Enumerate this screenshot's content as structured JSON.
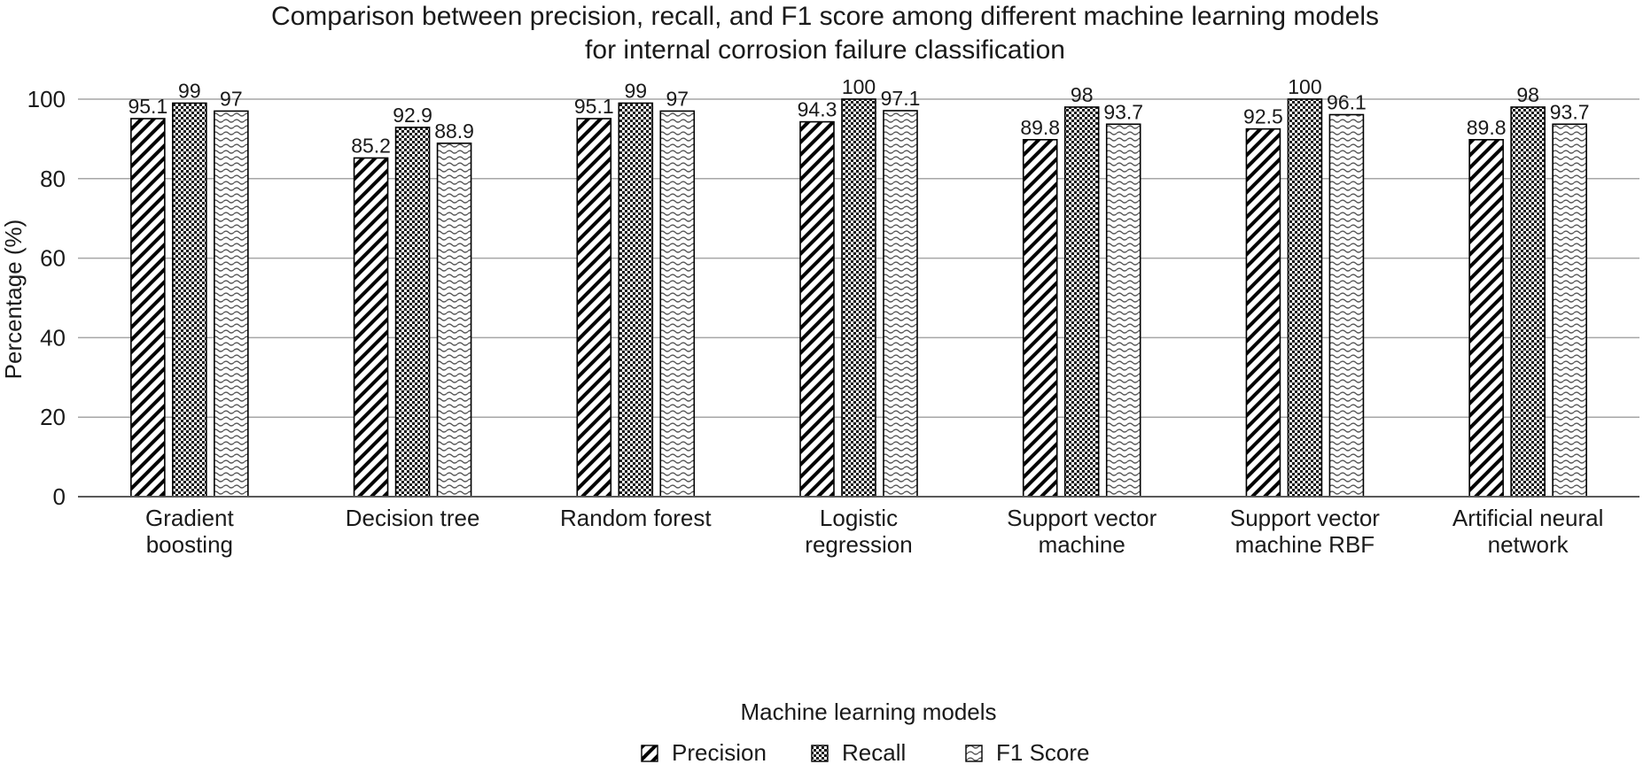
{
  "chart_data": {
    "type": "bar",
    "title_lines": [
      "Comparison between precision, recall, and F1 score among different machine learning models",
      "for internal corrosion failure classification"
    ],
    "xlabel": "Machine learning models",
    "ylabel": "Percentage (%)",
    "ylim": [
      0,
      100
    ],
    "yticks": [
      0,
      20,
      40,
      60,
      80,
      100
    ],
    "grid": true,
    "legend_position": "bottom",
    "categories": [
      [
        "Gradient",
        "boosting"
      ],
      [
        "Decision tree"
      ],
      [
        "Random forest"
      ],
      [
        "Logistic",
        "regression"
      ],
      [
        "Support vector",
        "machine"
      ],
      [
        "Support vector",
        "machine RBF"
      ],
      [
        "Artificial neural",
        "network"
      ]
    ],
    "series": [
      {
        "name": "Precision",
        "pattern": "diagonal-hatch",
        "values": [
          95.1,
          85.2,
          95.1,
          94.3,
          89.8,
          92.5,
          89.8
        ],
        "labels": [
          "95.1",
          "85.2",
          "95.1",
          "94.3",
          "89.8",
          "92.5",
          "89.8"
        ]
      },
      {
        "name": "Recall",
        "pattern": "checkerboard",
        "values": [
          99,
          92.9,
          99,
          100,
          98,
          100,
          98
        ],
        "labels": [
          "99",
          "92.9",
          "99",
          "100",
          "98",
          "100",
          "98"
        ]
      },
      {
        "name": "F1 Score",
        "pattern": "wave",
        "values": [
          97,
          88.9,
          97,
          97.1,
          93.7,
          96.1,
          93.7
        ],
        "labels": [
          "97",
          "88.9",
          "97",
          "97.1",
          "93.7",
          "96.1",
          "93.7"
        ]
      }
    ],
    "colors": {
      "bar_stroke": "#000000",
      "grid": "#a6a6a6",
      "axis": "#595959",
      "text": "#1a1a1a"
    }
  }
}
